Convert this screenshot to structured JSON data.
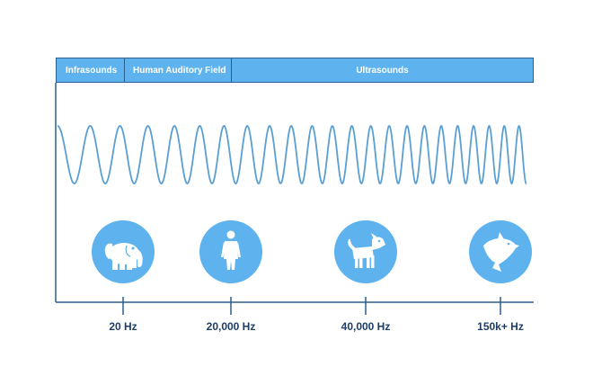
{
  "bands": {
    "infrasounds": "Infrasounds",
    "human": "Human Auditory Field",
    "ultrasounds": "Ultrasounds"
  },
  "frequencies": [
    "20 Hz",
    "20,000 Hz",
    "40,000 Hz",
    "150k+ Hz"
  ],
  "animals": [
    {
      "name": "elephant",
      "icon": "elephant-icon"
    },
    {
      "name": "human",
      "icon": "human-icon"
    },
    {
      "name": "dog",
      "icon": "dog-icon"
    },
    {
      "name": "dolphin",
      "icon": "dolphin-icon"
    }
  ],
  "colors": {
    "band": "#5eb3ee",
    "wave": "#5a9fd4",
    "circle": "#5eb3ee",
    "axis": "#2b5f8f",
    "label": "#1c3d66"
  }
}
